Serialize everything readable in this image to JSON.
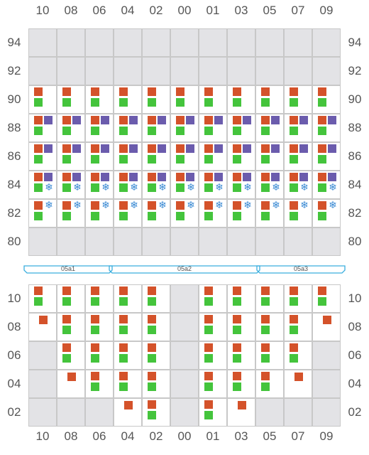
{
  "columns": [
    "10",
    "08",
    "06",
    "04",
    "02",
    "00",
    "01",
    "03",
    "05",
    "07",
    "09"
  ],
  "upper_rows": [
    "94",
    "92",
    "90",
    "88",
    "86",
    "84",
    "82",
    "80"
  ],
  "lower_rows": [
    "10",
    "08",
    "06",
    "04",
    "02"
  ],
  "colors": {
    "orange": "#d4522a",
    "green": "#44c43c",
    "purple": "#6b5cad",
    "snow": "#3a8ad4",
    "blocked": "#e3e3e6",
    "bracket": "#3aaede"
  },
  "icon_names": {
    "snow": "snowflake-icon"
  },
  "snow_glyph": "❄",
  "bays": [
    {
      "label": "05a1"
    },
    {
      "label": "05a2"
    },
    {
      "label": "05a3"
    }
  ],
  "upper_cells": {
    "94": "bbbbbbbbbbb",
    "92": "bbbbbbbbbbb",
    "90": [
      "og",
      "og",
      "og",
      "og",
      "og",
      "og",
      "og",
      "og",
      "og",
      "og",
      "og"
    ],
    "88": [
      "opg",
      "opg",
      "opg",
      "opg",
      "opg",
      "opg",
      "opg",
      "opg",
      "opg",
      "opg",
      "opg"
    ],
    "86": [
      "opg",
      "opg",
      "opg",
      "opg",
      "opg",
      "opg",
      "opg",
      "opg",
      "opg",
      "opg",
      "opg"
    ],
    "84": [
      "opgs",
      "opgs",
      "opgs",
      "opgs",
      "opgs",
      "opgs",
      "opgs",
      "opgs",
      "opgs",
      "opgs",
      "opgs"
    ],
    "82": [
      "osg",
      "osg",
      "osg",
      "osg",
      "osg",
      "osg",
      "osg",
      "osg",
      "osg",
      "osg",
      "osg"
    ],
    "80": "bbbbbbbbbbb"
  },
  "lower_cells": {
    "10": [
      "og",
      "og",
      "og",
      "og",
      "og",
      "B",
      "og",
      "og",
      "og",
      "og",
      "og"
    ],
    "08": [
      "o",
      "og",
      "og",
      "og",
      "og",
      "B",
      "og",
      "og",
      "og",
      "og",
      "o"
    ],
    "06": [
      "B",
      "og",
      "og",
      "og",
      "og",
      "B",
      "og",
      "og",
      "og",
      "og",
      "B"
    ],
    "04": [
      "B",
      "o",
      "og",
      "og",
      "og",
      "B",
      "og",
      "og",
      "og",
      "o",
      "B"
    ],
    "02": [
      "B",
      "B",
      "B",
      "o",
      "og",
      "B",
      "og",
      "o",
      "B",
      "B",
      "B"
    ]
  }
}
